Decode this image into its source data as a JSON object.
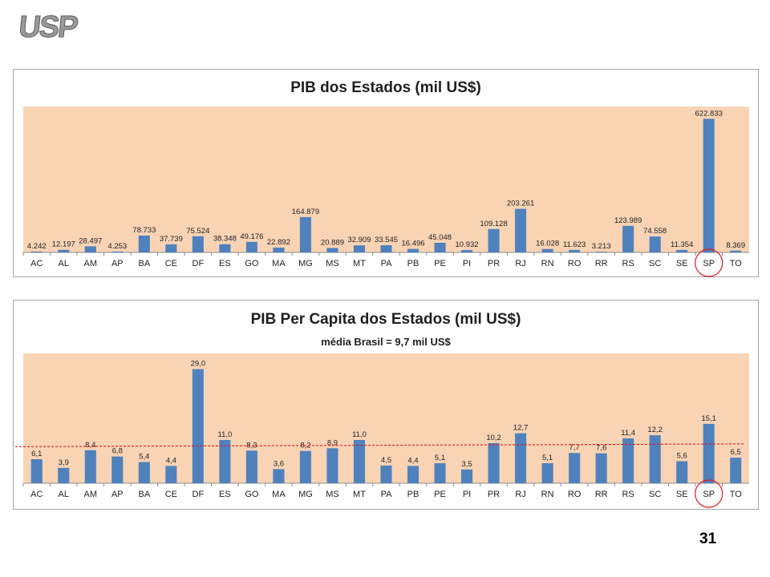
{
  "logo": {
    "text": "USP"
  },
  "page_number": "31",
  "colors": {
    "plot_bg": "#f8d3b4",
    "bar": "#4f81bd",
    "highlight_circle": "#e0191f",
    "average_line": "#e0191f"
  },
  "chart_data": [
    {
      "type": "bar",
      "title": "PIB dos Estados (mil US$)",
      "categories": [
        "AC",
        "AL",
        "AM",
        "AP",
        "BA",
        "CE",
        "DF",
        "ES",
        "GO",
        "MA",
        "MG",
        "MS",
        "MT",
        "PA",
        "PB",
        "PE",
        "PI",
        "PR",
        "RJ",
        "RN",
        "RO",
        "RR",
        "RS",
        "SC",
        "SE",
        "SP",
        "TO"
      ],
      "values": [
        4.242,
        12.197,
        28.497,
        4.253,
        78.733,
        37.739,
        75.524,
        38.348,
        49.176,
        22.892,
        164.879,
        20.889,
        32.909,
        33.545,
        16.496,
        45.048,
        10.932,
        109.128,
        203.261,
        16.028,
        11.623,
        3.213,
        123.989,
        74.558,
        11.354,
        622.833,
        8.369
      ],
      "labels": [
        "4.242",
        "12.197",
        "28.497",
        "4.253",
        "78.733",
        "37.739",
        "75.524",
        "38.348",
        "49.176",
        "22.892",
        "164.879",
        "20.889",
        "32.909",
        "33.545",
        "16.496",
        "45.048",
        "10.932",
        "109.128",
        "203.261",
        "16.028",
        "11.623",
        "3.213",
        "123.989",
        "74.558",
        "11.354",
        "622.833",
        "8.369"
      ],
      "ylim": [
        0,
        680
      ],
      "highlight": "SP",
      "grid": false
    },
    {
      "type": "bar",
      "title": "PIB Per Capita dos Estados (mil US$)",
      "subtitle": "média Brasil = 9,7 mil US$",
      "categories": [
        "AC",
        "AL",
        "AM",
        "AP",
        "BA",
        "CE",
        "DF",
        "ES",
        "GO",
        "MA",
        "MG",
        "MS",
        "MT",
        "PA",
        "PB",
        "PE",
        "PI",
        "PR",
        "RJ",
        "RN",
        "RO",
        "RR",
        "RS",
        "SC",
        "SE",
        "SP",
        "TO"
      ],
      "values": [
        6.1,
        3.9,
        8.4,
        6.8,
        5.4,
        4.4,
        29.0,
        11.0,
        8.3,
        3.6,
        8.2,
        8.9,
        11.0,
        4.5,
        4.4,
        5.1,
        3.5,
        10.2,
        12.7,
        5.1,
        7.7,
        7.6,
        11.4,
        12.2,
        5.6,
        15.1,
        6.5
      ],
      "labels": [
        "6,1",
        "3,9",
        "8,4",
        "6,8",
        "5,4",
        "4,4",
        "29,0",
        "11,0",
        "8,3",
        "3,6",
        "8,2",
        "8,9",
        "11,0",
        "4,5",
        "4,4",
        "5,1",
        "3,5",
        "10,2",
        "12,7",
        "5,1",
        "7,7",
        "7,6",
        "11,4",
        "12,2",
        "5,6",
        "15,1",
        "6,5"
      ],
      "ylim": [
        0,
        33
      ],
      "average_line": {
        "from": 9.3,
        "to": 10.0
      },
      "highlight": "SP",
      "grid": false
    }
  ]
}
